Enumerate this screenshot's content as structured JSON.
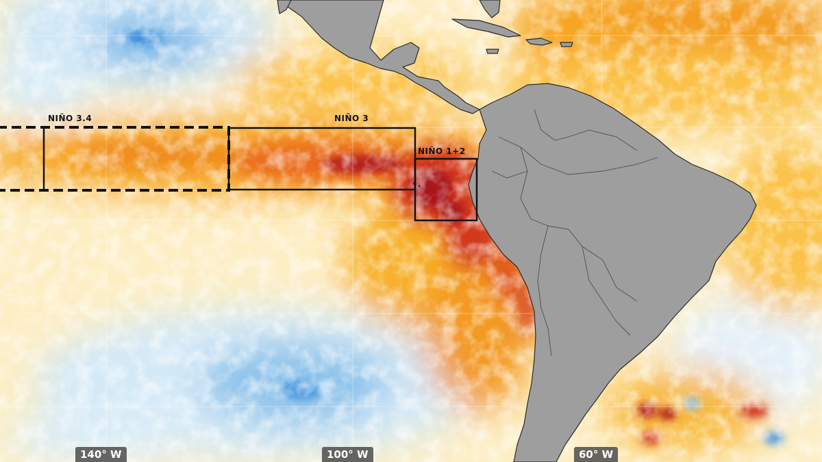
{
  "map": {
    "regions": [
      {
        "id": "nino34",
        "label": "NIÑO 3.4",
        "border": "dashed"
      },
      {
        "id": "nino3",
        "label": "NIÑO 3",
        "border": "solid"
      },
      {
        "id": "nino12",
        "label": "NIÑO 1+2",
        "border": "solid"
      }
    ],
    "longitude_labels": [
      "140° W",
      "100° W",
      "60° W"
    ],
    "colors": {
      "land": "#9e9e9e",
      "coastline": "#2a2a2a",
      "warm_light": "#fde8a8",
      "warm": "#fbc24a",
      "warm_strong": "#f6a21d",
      "hot": "#ea6a1c",
      "hotter": "#d2381b",
      "hottest": "#a9181a",
      "cool": "#cfe6f6",
      "cold": "#5aa8e4",
      "coldest": "#2f86d6",
      "box": "#111111"
    }
  }
}
